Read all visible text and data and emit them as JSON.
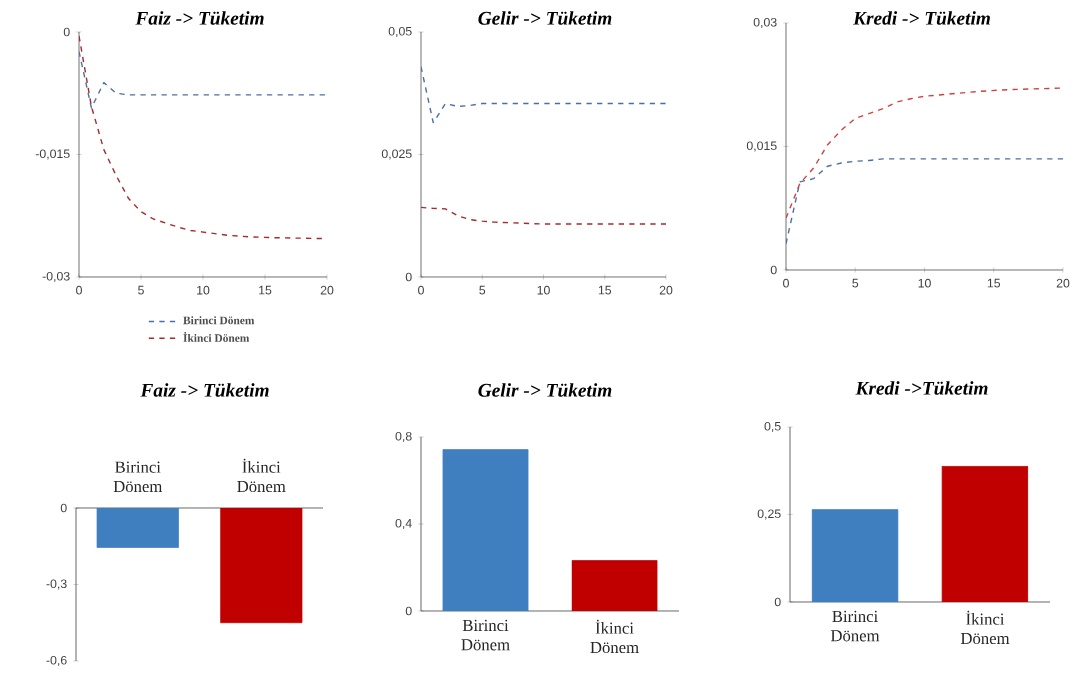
{
  "chart_data": [
    {
      "type": "line",
      "title": "Faiz -> Tüketim",
      "x": [
        0,
        1,
        2,
        3,
        4,
        5,
        6,
        7,
        8,
        9,
        10,
        12,
        14,
        16,
        20
      ],
      "xlim": [
        0,
        20
      ],
      "xticks": [
        0,
        5,
        10,
        15,
        20
      ],
      "ylim": [
        -0.03,
        0
      ],
      "yticks": [
        {
          "value": -0.03,
          "label": "-0,03"
        },
        {
          "value": -0.015,
          "label": "-0,015"
        },
        0
      ],
      "legend": "bottom",
      "series": [
        {
          "name": "Birinci Dönem",
          "color": "#4a6fa5",
          "line_style": "dashed",
          "values": [
            -0.0024,
            -0.0093,
            -0.0062,
            -0.0075,
            -0.0077,
            -0.0077,
            -0.0077,
            -0.0077,
            -0.0077,
            -0.0077,
            -0.0077,
            -0.0077,
            -0.0077,
            -0.0077,
            -0.0077
          ]
        },
        {
          "name": "İkinci Dönem",
          "color": "#a52a2a",
          "line_style": "dashed",
          "values": [
            -0.0005,
            -0.0091,
            -0.0144,
            -0.0176,
            -0.0204,
            -0.022,
            -0.0229,
            -0.0234,
            -0.0239,
            -0.0243,
            -0.0245,
            -0.0249,
            -0.0251,
            -0.0252,
            -0.0253
          ]
        }
      ]
    },
    {
      "type": "line",
      "title": "Gelir -> Tüketim",
      "x": [
        0,
        1,
        2,
        3,
        4,
        5,
        6,
        8,
        10,
        12,
        14,
        16,
        20
      ],
      "xlim": [
        0,
        20
      ],
      "xticks": [
        0,
        5,
        10,
        15,
        20
      ],
      "ylim": [
        0,
        0.05
      ],
      "yticks": [
        0,
        {
          "value": 0.025,
          "label": "0,025"
        },
        {
          "value": 0.05,
          "label": "0,05"
        }
      ],
      "series": [
        {
          "color": "#4a6fa5",
          "line_style": "dashed",
          "values": [
            0.0429,
            0.0315,
            0.0354,
            0.0348,
            0.035,
            0.0354,
            0.0354,
            0.0354,
            0.0354,
            0.0354,
            0.0354,
            0.0354,
            0.0354
          ]
        },
        {
          "color": "#a52a2a",
          "line_style": "dashed",
          "values": [
            0.0142,
            0.014,
            0.0139,
            0.0125,
            0.0117,
            0.0114,
            0.0112,
            0.011,
            0.0108,
            0.0108,
            0.0108,
            0.0108,
            0.0108
          ]
        }
      ]
    },
    {
      "type": "line",
      "title": "Kredi -> Tüketim",
      "x": [
        0,
        1,
        2,
        3,
        4,
        5,
        6,
        7,
        8,
        9,
        10,
        12,
        14,
        16,
        20
      ],
      "xlim": [
        0,
        20
      ],
      "xticks": [
        0,
        5,
        10,
        15,
        20
      ],
      "ylim": [
        0,
        0.03
      ],
      "yticks": [
        0,
        {
          "value": 0.015,
          "label": "0,015"
        },
        {
          "value": 0.03,
          "label": "0,03"
        }
      ],
      "series": [
        {
          "color": "#4a6fa5",
          "line_style": "dashed",
          "values": [
            0.0032,
            0.0107,
            0.0111,
            0.0126,
            0.013,
            0.0132,
            0.0133,
            0.0135,
            0.0135,
            0.0135,
            0.0135,
            0.0135,
            0.0135,
            0.0135,
            0.0135
          ]
        },
        {
          "color": "#d04040",
          "line_style": "dashed",
          "values": [
            0.0063,
            0.0105,
            0.0124,
            0.0152,
            0.017,
            0.0184,
            0.019,
            0.0196,
            0.0204,
            0.0208,
            0.0211,
            0.0214,
            0.0217,
            0.0219,
            0.0221
          ]
        }
      ]
    },
    {
      "type": "bar",
      "title": "Faiz -> Tüketim",
      "categories": [
        "Birinci Dönem",
        "İkinci Dönem"
      ],
      "values": [
        -0.155,
        -0.45
      ],
      "colors": [
        "#3f7fc0",
        "#c00000"
      ],
      "ylim": [
        -0.6,
        0
      ],
      "yticks": [
        {
          "value": -0.6,
          "label": "-0,6"
        },
        {
          "value": -0.3,
          "label": "-0,3"
        },
        0
      ]
    },
    {
      "type": "bar",
      "title": "Gelir -> Tüketim",
      "categories": [
        "Birinci Dönem",
        "İkinci Dönem"
      ],
      "values": [
        0.742,
        0.232
      ],
      "colors": [
        "#3f7fc0",
        "#c00000"
      ],
      "ylim": [
        0,
        0.8
      ],
      "yticks": [
        0,
        {
          "value": 0.4,
          "label": "0,4"
        },
        {
          "value": 0.8,
          "label": "0,8"
        }
      ]
    },
    {
      "type": "bar",
      "title": "Kredi ->Tüketim",
      "categories": [
        "Birinci Dönem",
        "İkinci Dönem"
      ],
      "values": [
        0.264,
        0.388
      ],
      "colors": [
        "#3f7fc0",
        "#c00000"
      ],
      "ylim": [
        0,
        0.5
      ],
      "yticks": [
        0,
        {
          "value": 0.25,
          "label": "0,25"
        },
        {
          "value": 0.5,
          "label": "0,5"
        }
      ]
    }
  ]
}
